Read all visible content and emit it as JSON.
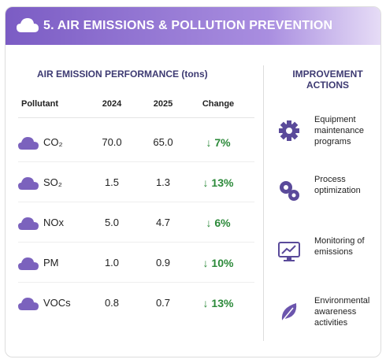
{
  "header": {
    "title": "5. AIR EMISSIONS & POLLUTION PREVENTION"
  },
  "table": {
    "title": "AIR EMISSION PERFORMANCE (tons)",
    "columns": [
      "Pollutant",
      "2024",
      "2025",
      "Change"
    ],
    "rows": [
      [
        "CO₂",
        "70.0",
        "65.0",
        "↓ 7%"
      ],
      [
        "SO₂",
        "1.5",
        "1.3",
        "↓ 13%"
      ],
      [
        "NOx",
        "5.0",
        "4.7",
        "↓ 6%"
      ],
      [
        "PM",
        "1.0",
        "0.9",
        "↓ 10%"
      ],
      [
        "VOCs",
        "0.8",
        "0.7",
        "↓ 13%"
      ]
    ]
  },
  "actions": {
    "title": "IMPROVEMENT ACTIONS",
    "items": [
      "Equipment maintenance programs",
      "Process optimization",
      "Monitoring of emissions",
      "Environmental awareness activities"
    ]
  }
}
